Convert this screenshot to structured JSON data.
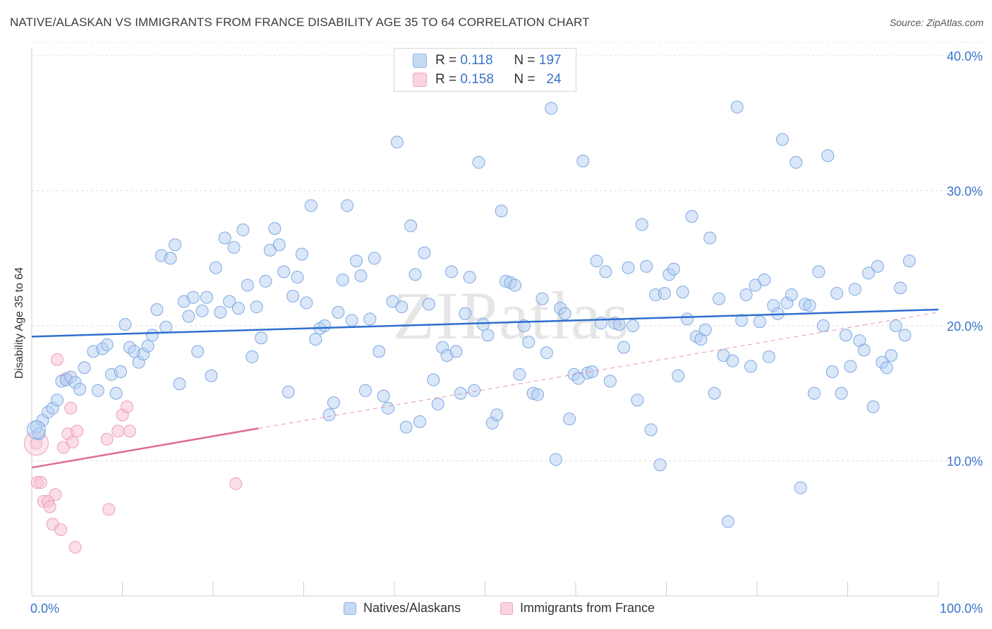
{
  "title": "NATIVE/ALASKAN VS IMMIGRANTS FROM FRANCE DISABILITY AGE 35 TO 64 CORRELATION CHART",
  "source": "Source: ZipAtlas.com",
  "watermark": "ZIPatlas",
  "colors": {
    "blue": "#9dc0ee",
    "blue_line": "#2f6fd0",
    "pink": "#f5b3c8",
    "pink_line": "#e06a95",
    "axis_text": "#3a74c8"
  },
  "stats": [
    {
      "r_label": "R =",
      "r_value": "0.118",
      "n_label": "N =",
      "n_value": "197"
    },
    {
      "r_label": "R =",
      "r_value": "0.158",
      "n_label": "N =",
      "n_value": "24"
    }
  ],
  "chart_data": {
    "type": "scatter",
    "title": "NATIVE/ALASKAN VS IMMIGRANTS FROM FRANCE DISABILITY AGE 35 TO 64 CORRELATION CHART",
    "xlabel": "",
    "ylabel": "Disability Age 35 to 64",
    "xlim": [
      0,
      100
    ],
    "ylim": [
      0,
      41
    ],
    "x_tick_labels": [
      "0.0%",
      "100.0%"
    ],
    "y_ticks": [
      10,
      20,
      30,
      40
    ],
    "y_tick_labels": [
      "10.0%",
      "20.0%",
      "30.0%",
      "40.0%"
    ],
    "grid": true,
    "legend": "bottom",
    "series": [
      {
        "name": "Natives/Alaskans",
        "color": "#9dc0ee",
        "trend": {
          "x": [
            0,
            100
          ],
          "y": [
            19.2,
            21.2
          ]
        },
        "points": [
          [
            0.5,
            12.5
          ],
          [
            0.8,
            12.0
          ],
          [
            1.2,
            13.0
          ],
          [
            1.8,
            13.6
          ],
          [
            2.3,
            13.9
          ],
          [
            2.8,
            14.5
          ],
          [
            3.3,
            15.9
          ],
          [
            3.8,
            16.0
          ],
          [
            4.3,
            16.2
          ],
          [
            4.8,
            15.8
          ],
          [
            5.3,
            15.3
          ],
          [
            5.8,
            16.9
          ],
          [
            6.8,
            18.1
          ],
          [
            7.3,
            15.2
          ],
          [
            7.8,
            18.3
          ],
          [
            8.3,
            18.6
          ],
          [
            8.8,
            16.4
          ],
          [
            9.3,
            15.0
          ],
          [
            9.8,
            16.6
          ],
          [
            10.3,
            20.1
          ],
          [
            10.8,
            18.4
          ],
          [
            11.3,
            18.1
          ],
          [
            11.8,
            17.3
          ],
          [
            12.3,
            17.9
          ],
          [
            12.8,
            18.5
          ],
          [
            13.3,
            19.3
          ],
          [
            13.8,
            21.2
          ],
          [
            14.3,
            25.2
          ],
          [
            14.8,
            19.9
          ],
          [
            15.3,
            25.0
          ],
          [
            15.8,
            26.0
          ],
          [
            16.3,
            15.7
          ],
          [
            16.8,
            21.8
          ],
          [
            17.3,
            20.7
          ],
          [
            17.8,
            22.1
          ],
          [
            18.3,
            18.1
          ],
          [
            18.8,
            21.1
          ],
          [
            19.3,
            22.1
          ],
          [
            19.8,
            16.3
          ],
          [
            20.3,
            24.3
          ],
          [
            20.8,
            21.0
          ],
          [
            21.3,
            26.5
          ],
          [
            21.8,
            21.8
          ],
          [
            22.3,
            25.8
          ],
          [
            22.8,
            21.3
          ],
          [
            23.3,
            27.1
          ],
          [
            23.8,
            23.0
          ],
          [
            24.3,
            17.7
          ],
          [
            24.8,
            21.4
          ],
          [
            25.3,
            19.1
          ],
          [
            25.8,
            23.3
          ],
          [
            26.3,
            25.6
          ],
          [
            26.8,
            27.2
          ],
          [
            27.3,
            26.0
          ],
          [
            27.8,
            24.0
          ],
          [
            28.3,
            15.1
          ],
          [
            28.8,
            22.2
          ],
          [
            29.3,
            23.6
          ],
          [
            29.8,
            25.3
          ],
          [
            30.3,
            21.7
          ],
          [
            30.8,
            28.9
          ],
          [
            31.3,
            19.0
          ],
          [
            31.8,
            19.8
          ],
          [
            32.3,
            20.0
          ],
          [
            32.8,
            13.4
          ],
          [
            33.3,
            14.3
          ],
          [
            33.8,
            21.0
          ],
          [
            34.3,
            23.4
          ],
          [
            34.8,
            28.9
          ],
          [
            35.3,
            20.4
          ],
          [
            35.8,
            24.8
          ],
          [
            36.3,
            23.7
          ],
          [
            36.8,
            15.2
          ],
          [
            37.3,
            20.5
          ],
          [
            37.8,
            25.0
          ],
          [
            38.3,
            18.1
          ],
          [
            38.8,
            14.8
          ],
          [
            39.3,
            13.9
          ],
          [
            39.8,
            21.8
          ],
          [
            40.3,
            33.6
          ],
          [
            40.8,
            21.4
          ],
          [
            41.3,
            12.5
          ],
          [
            41.8,
            27.4
          ],
          [
            42.3,
            23.8
          ],
          [
            42.8,
            12.9
          ],
          [
            43.3,
            25.4
          ],
          [
            43.8,
            21.6
          ],
          [
            44.3,
            16.0
          ],
          [
            44.8,
            14.2
          ],
          [
            45.3,
            18.4
          ],
          [
            45.8,
            17.8
          ],
          [
            46.3,
            24.0
          ],
          [
            46.8,
            18.1
          ],
          [
            47.3,
            15.0
          ],
          [
            47.8,
            20.9
          ],
          [
            48.3,
            23.6
          ],
          [
            48.8,
            15.2
          ],
          [
            49.3,
            32.1
          ],
          [
            49.8,
            20.1
          ],
          [
            50.3,
            19.3
          ],
          [
            50.8,
            12.8
          ],
          [
            51.3,
            13.4
          ],
          [
            51.8,
            28.5
          ],
          [
            52.3,
            23.3
          ],
          [
            52.8,
            23.2
          ],
          [
            53.3,
            23.0
          ],
          [
            53.8,
            16.4
          ],
          [
            54.3,
            20.0
          ],
          [
            54.8,
            18.8
          ],
          [
            55.3,
            15.0
          ],
          [
            55.8,
            14.9
          ],
          [
            56.3,
            22.0
          ],
          [
            56.8,
            18.0
          ],
          [
            57.3,
            36.1
          ],
          [
            57.8,
            10.1
          ],
          [
            58.3,
            21.3
          ],
          [
            58.8,
            20.9
          ],
          [
            59.3,
            13.1
          ],
          [
            59.8,
            16.4
          ],
          [
            60.3,
            16.1
          ],
          [
            60.8,
            32.2
          ],
          [
            61.3,
            16.5
          ],
          [
            61.8,
            16.6
          ],
          [
            62.3,
            24.8
          ],
          [
            62.8,
            20.2
          ],
          [
            63.3,
            24.0
          ],
          [
            63.8,
            15.9
          ],
          [
            64.3,
            20.2
          ],
          [
            64.8,
            20.1
          ],
          [
            65.3,
            18.4
          ],
          [
            65.8,
            24.3
          ],
          [
            66.3,
            20.0
          ],
          [
            66.8,
            14.5
          ],
          [
            67.3,
            27.5
          ],
          [
            67.8,
            24.4
          ],
          [
            68.3,
            12.3
          ],
          [
            68.8,
            22.3
          ],
          [
            69.3,
            9.7
          ],
          [
            69.8,
            22.4
          ],
          [
            70.3,
            23.8
          ],
          [
            70.8,
            24.2
          ],
          [
            71.3,
            16.3
          ],
          [
            71.8,
            22.5
          ],
          [
            72.3,
            20.5
          ],
          [
            72.8,
            28.1
          ],
          [
            73.3,
            19.2
          ],
          [
            73.8,
            19.0
          ],
          [
            74.3,
            19.7
          ],
          [
            74.8,
            26.5
          ],
          [
            75.3,
            15.0
          ],
          [
            75.8,
            22.0
          ],
          [
            76.3,
            17.8
          ],
          [
            76.8,
            5.5
          ],
          [
            77.3,
            17.4
          ],
          [
            77.8,
            36.2
          ],
          [
            78.3,
            20.4
          ],
          [
            78.8,
            22.3
          ],
          [
            79.3,
            17.0
          ],
          [
            79.8,
            23.0
          ],
          [
            80.3,
            20.3
          ],
          [
            80.8,
            23.4
          ],
          [
            81.3,
            17.7
          ],
          [
            81.8,
            21.5
          ],
          [
            82.3,
            20.9
          ],
          [
            82.8,
            33.8
          ],
          [
            83.3,
            21.7
          ],
          [
            83.8,
            22.3
          ],
          [
            84.3,
            32.1
          ],
          [
            84.8,
            8.0
          ],
          [
            85.3,
            21.6
          ],
          [
            85.8,
            21.5
          ],
          [
            86.3,
            15.0
          ],
          [
            86.8,
            24.0
          ],
          [
            87.3,
            20.0
          ],
          [
            87.8,
            32.6
          ],
          [
            88.3,
            16.6
          ],
          [
            88.8,
            22.4
          ],
          [
            89.3,
            15.0
          ],
          [
            89.8,
            19.3
          ],
          [
            90.3,
            17.0
          ],
          [
            90.8,
            22.7
          ],
          [
            91.3,
            18.9
          ],
          [
            91.8,
            18.2
          ],
          [
            92.3,
            23.9
          ],
          [
            92.8,
            14.0
          ],
          [
            93.3,
            24.4
          ],
          [
            93.8,
            17.3
          ],
          [
            94.3,
            16.9
          ],
          [
            94.8,
            17.8
          ],
          [
            95.3,
            20.0
          ],
          [
            95.8,
            22.8
          ],
          [
            96.3,
            19.3
          ],
          [
            96.8,
            24.8
          ]
        ]
      },
      {
        "name": "Immigrants from France",
        "color": "#f5b3c8",
        "trend": {
          "x": [
            0,
            25
          ],
          "y": [
            9.5,
            12.4
          ],
          "dashed_to": [
            100,
            21.0
          ]
        },
        "points": [
          [
            0.5,
            11.3
          ],
          [
            0.6,
            8.4
          ],
          [
            1.0,
            8.4
          ],
          [
            1.3,
            7.0
          ],
          [
            1.8,
            7.0
          ],
          [
            2.0,
            6.6
          ],
          [
            2.3,
            5.3
          ],
          [
            2.6,
            7.5
          ],
          [
            2.8,
            17.5
          ],
          [
            3.2,
            4.9
          ],
          [
            3.5,
            11.0
          ],
          [
            3.8,
            16.1
          ],
          [
            4.0,
            12.0
          ],
          [
            4.3,
            13.9
          ],
          [
            4.5,
            11.4
          ],
          [
            4.8,
            3.6
          ],
          [
            5.0,
            12.2
          ],
          [
            8.3,
            11.6
          ],
          [
            8.5,
            6.4
          ],
          [
            9.5,
            12.2
          ],
          [
            10.0,
            13.4
          ],
          [
            10.5,
            14.0
          ],
          [
            10.8,
            12.2
          ],
          [
            22.5,
            8.3
          ]
        ]
      }
    ]
  },
  "legend_items": [
    {
      "label": "Natives/Alaskans"
    },
    {
      "label": "Immigrants from France"
    }
  ]
}
